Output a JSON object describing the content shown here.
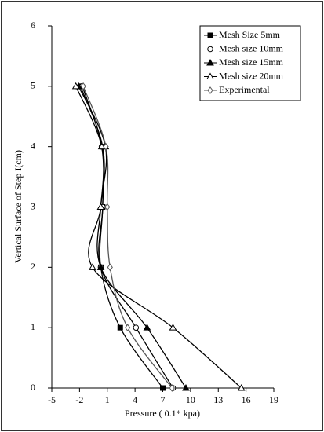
{
  "chart_data": {
    "type": "line",
    "x_label": "Pressure ( 0.1* kpa)",
    "y_label": "Vertical Surface of Step I(cm)",
    "y": [
      0,
      1,
      2,
      3,
      4,
      5
    ],
    "series": [
      {
        "name": "Mesh Size 5mm",
        "color": "#000000",
        "marker": "square",
        "filled": true,
        "x": [
          7.0,
          2.4,
          0.3,
          0.5,
          0.5,
          -1.9
        ]
      },
      {
        "name": "Mesh size 10mm",
        "color": "#000000",
        "marker": "circle",
        "filled": false,
        "x": [
          8.1,
          4.1,
          0.3,
          0.5,
          0.4,
          -1.7
        ]
      },
      {
        "name": "Mesh size 15mm",
        "color": "#000000",
        "marker": "triangle",
        "filled": true,
        "x": [
          9.5,
          5.3,
          0.3,
          0.3,
          0.8,
          -2.1
        ]
      },
      {
        "name": "Mesh size 20mm",
        "color": "#000000",
        "marker": "triangle",
        "filled": false,
        "x": [
          15.5,
          8.1,
          -0.6,
          0.3,
          0.4,
          -2.4
        ]
      },
      {
        "name": "Experimental",
        "color": "#555555",
        "marker": "diamond",
        "filled": false,
        "x": [
          8.0,
          3.2,
          1.3,
          1.0,
          0.85,
          -1.6
        ]
      }
    ],
    "xlim": [
      -5,
      19
    ],
    "xticks": [
      -5,
      -2,
      1,
      4,
      7,
      10,
      13,
      16,
      19
    ],
    "ylim": [
      0,
      6
    ],
    "yticks": [
      0,
      1,
      2,
      3,
      4,
      5,
      6
    ],
    "legend": "upper right"
  }
}
